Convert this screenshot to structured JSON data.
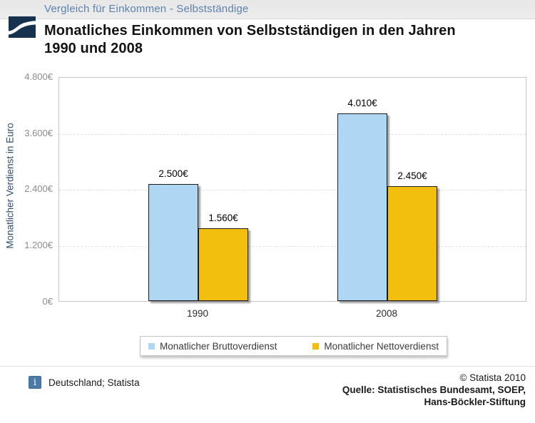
{
  "header": {
    "breadcrumb": "Vergleich für Einkommen - Selbstständige",
    "title_line1": "Monatliches Einkommen von Selbstständigen in den Jahren",
    "title_line2": "1990 und 2008"
  },
  "chart_data": {
    "type": "bar",
    "categories": [
      "1990",
      "2008"
    ],
    "series": [
      {
        "name": "Monatlicher Bruttoverdienst",
        "color": "#AFD6F2",
        "values": [
          2500,
          4010
        ],
        "value_labels": [
          "2.500€",
          "4.010€"
        ]
      },
      {
        "name": "Monatlicher Nettoverdienst",
        "color": "#F2BF0F",
        "values": [
          1560,
          2450
        ],
        "value_labels": [
          "1.560€",
          "2.450€"
        ]
      }
    ],
    "ylabel": "Monatlicher Verdienst in Euro",
    "xlabel": "",
    "ylim": [
      0,
      4800
    ],
    "yticks": [
      0,
      1200,
      2400,
      3600,
      4800
    ],
    "ytick_labels": [
      "0€",
      "1.200€",
      "2.400€",
      "3.600€",
      "4.800€"
    ],
    "grid": "horizontal-dashed",
    "legend_position": "bottom"
  },
  "footer": {
    "info_icon": "i",
    "left_text": "Deutschland; Statista",
    "copyright": "© Statista 2010",
    "source_line1": "Quelle: Statistisches Bundesamt, SOEP,",
    "source_line2": "Hans-Böckler-Stiftung"
  },
  "colors": {
    "bar_blue": "#AFD6F2",
    "bar_yellow": "#F2BF0F",
    "logo_navy": "#16324E",
    "info_icon_blue": "#4a7ba8",
    "breadcrumb_blue": "#5b82ad",
    "ylabel_blue": "#2f516f"
  }
}
